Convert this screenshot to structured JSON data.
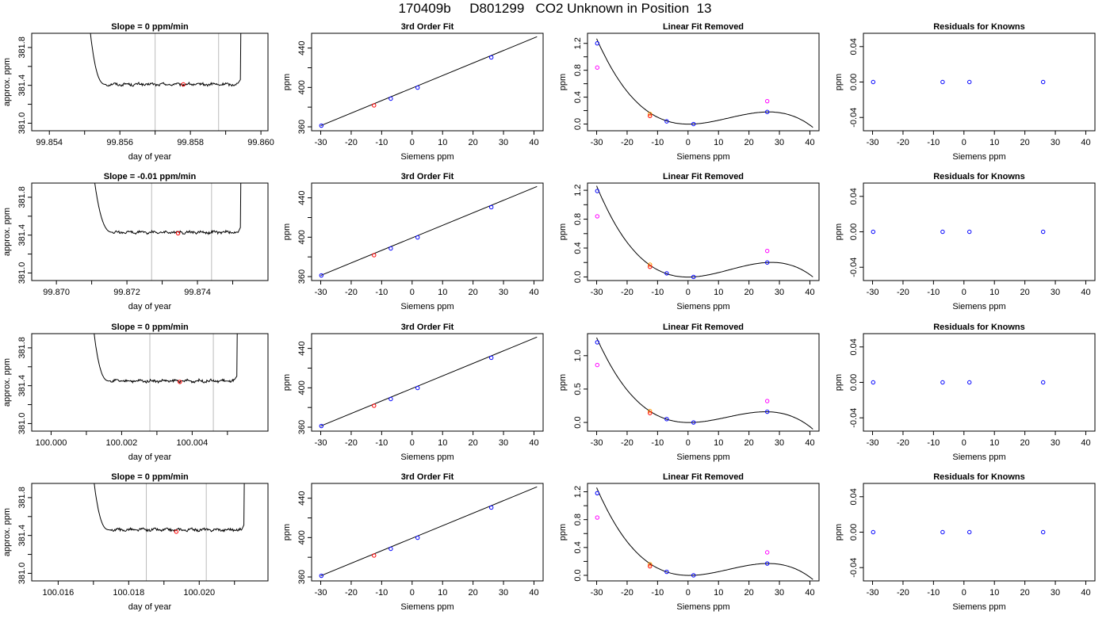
{
  "figure_title": "170409b     D801299   CO2 Unknown in Position  13",
  "colors": {
    "trace": "#000000",
    "marker_point": "#ff0000",
    "known_points": "#0000ff",
    "fit_point_alt": "#ff9900",
    "unknown_point": "#ff00ff",
    "guide_lines": "#bbbbbb"
  },
  "chart_data": [
    {
      "type": "line",
      "row": 0,
      "title": "Slope =  0  ppm/min",
      "xlabel": "day of year",
      "ylabel": "approx. ppm",
      "xlim": [
        99.8535,
        99.8602
      ],
      "ylim": [
        380.92,
        381.95
      ],
      "xticks": [
        99.854,
        99.855,
        99.856,
        99.857,
        99.858,
        99.859,
        99.86
      ],
      "xticklabels": [
        "99.854",
        "",
        "99.856",
        "",
        "99.858",
        "",
        "99.860"
      ],
      "yticks": [
        381.0,
        381.2,
        381.4,
        381.6,
        381.8
      ],
      "yticklabels": [
        "381.0",
        "",
        "381.4",
        "",
        "381.8"
      ],
      "trace": {
        "start": 99.85505,
        "settle": 99.8556,
        "end": 99.85935,
        "level": 381.41,
        "initial": 382.4
      },
      "window": [
        99.857,
        99.8588
      ],
      "marker": {
        "x": 99.8578,
        "y": 381.41
      }
    },
    {
      "type": "scatter",
      "row": 0,
      "title": "3rd Order Fit",
      "xlabel": "Siemens ppm",
      "ylabel": "ppm",
      "xlim": [
        -33,
        43
      ],
      "ylim": [
        356,
        455
      ],
      "xticks": [
        -30,
        -20,
        -10,
        0,
        10,
        20,
        30,
        40
      ],
      "yticks": [
        360,
        380,
        400,
        420,
        440
      ],
      "yticklabels": [
        "360",
        "",
        "400",
        "",
        "440"
      ],
      "fit_line": {
        "x1": -30,
        "y1": 361.2,
        "x2": 41,
        "y2": 451.5
      },
      "points": [
        {
          "x": -29.8,
          "y": 361.2,
          "color": "blue"
        },
        {
          "x": -12.5,
          "y": 381.8,
          "color": "red"
        },
        {
          "x": -7,
          "y": 388.6,
          "color": "blue"
        },
        {
          "x": 1.8,
          "y": 399.8,
          "color": "blue"
        },
        {
          "x": 26,
          "y": 430.5,
          "color": "blue"
        }
      ]
    },
    {
      "type": "scatter",
      "row": 0,
      "title": "Linear Fit Removed",
      "xlabel": "Siemens ppm",
      "ylabel": "ppm",
      "xlim": [
        -33,
        43
      ],
      "ylim": [
        -0.1,
        1.35
      ],
      "xticks": [
        -30,
        -20,
        -10,
        0,
        10,
        20,
        30,
        40
      ],
      "yticks": [
        0.0,
        0.2,
        0.4,
        0.6,
        0.8,
        1.0,
        1.2
      ],
      "yticklabels": [
        "0.0",
        "",
        "0.4",
        "",
        "0.8",
        "",
        "1.2"
      ],
      "curve": {
        "anchors": [
          {
            "x": -30,
            "y": 1.27
          },
          {
            "x": 1.5,
            "y": 0.0
          },
          {
            "x": 26,
            "y": 0.18
          },
          {
            "x": 41,
            "y": -0.05
          }
        ]
      },
      "points": [
        {
          "x": -29.8,
          "y": 1.2,
          "color": "blue"
        },
        {
          "x": -29.8,
          "y": 0.84,
          "color": "magenta"
        },
        {
          "x": -12.5,
          "y": 0.15,
          "color": "orange"
        },
        {
          "x": -12.5,
          "y": 0.12,
          "color": "red"
        },
        {
          "x": -7,
          "y": 0.04,
          "color": "blue"
        },
        {
          "x": 1.8,
          "y": 0.0,
          "color": "blue"
        },
        {
          "x": 26,
          "y": 0.18,
          "color": "blue"
        },
        {
          "x": 26,
          "y": 0.34,
          "color": "magenta"
        }
      ]
    },
    {
      "type": "scatter",
      "row": 0,
      "title": "Residuals for Knowns",
      "xlabel": "Siemens ppm",
      "ylabel": "ppm",
      "xlim": [
        -33,
        43
      ],
      "ylim": [
        -0.055,
        0.055
      ],
      "xticks": [
        -30,
        -20,
        -10,
        0,
        10,
        20,
        30,
        40
      ],
      "yticks": [
        -0.04,
        0.0,
        0.04
      ],
      "yticklabels": [
        "-0.04",
        "0.00",
        "0.04"
      ],
      "points": [
        {
          "x": -29.8,
          "y": 0,
          "color": "blue"
        },
        {
          "x": -7,
          "y": 0,
          "color": "blue"
        },
        {
          "x": 1.8,
          "y": 0,
          "color": "blue"
        },
        {
          "x": 26,
          "y": 0,
          "color": "blue"
        }
      ]
    },
    {
      "type": "line",
      "row": 1,
      "title": "Slope =  -0.01  ppm/min",
      "xlabel": "day of year",
      "ylabel": "approx. ppm",
      "xlim": [
        99.8693,
        99.876
      ],
      "ylim": [
        380.92,
        381.95
      ],
      "xticks": [
        99.87,
        99.871,
        99.872,
        99.873,
        99.874,
        99.875
      ],
      "xticklabels": [
        "99.870",
        "",
        "99.872",
        "",
        "99.874",
        ""
      ],
      "yticks": [
        381.0,
        381.2,
        381.4,
        381.6,
        381.8
      ],
      "yticklabels": [
        "381.0",
        "",
        "381.4",
        "",
        "381.8"
      ],
      "trace": {
        "start": 99.87095,
        "settle": 99.8716,
        "end": 99.87515,
        "level": 381.43,
        "initial": 382.4
      },
      "window": [
        99.8727,
        99.8744
      ],
      "marker": {
        "x": 99.87345,
        "y": 381.42
      }
    },
    {
      "type": "scatter",
      "row": 1,
      "title": "3rd Order Fit",
      "xlabel": "Siemens ppm",
      "ylabel": "ppm",
      "xlim": [
        -33,
        43
      ],
      "ylim": [
        356,
        455
      ],
      "xticks": [
        -30,
        -20,
        -10,
        0,
        10,
        20,
        30,
        40
      ],
      "yticks": [
        360,
        380,
        400,
        420,
        440
      ],
      "yticklabels": [
        "360",
        "",
        "400",
        "",
        "440"
      ],
      "fit_line": {
        "x1": -30,
        "y1": 361.2,
        "x2": 41,
        "y2": 451.5
      },
      "points": [
        {
          "x": -29.8,
          "y": 361.2,
          "color": "blue"
        },
        {
          "x": -12.5,
          "y": 381.8,
          "color": "red"
        },
        {
          "x": -7,
          "y": 388.6,
          "color": "blue"
        },
        {
          "x": 1.8,
          "y": 399.8,
          "color": "blue"
        },
        {
          "x": 26,
          "y": 430.5,
          "color": "blue"
        }
      ]
    },
    {
      "type": "scatter",
      "row": 1,
      "title": "Linear Fit Removed",
      "xlabel": "Siemens ppm",
      "ylabel": "ppm",
      "xlim": [
        -33,
        43
      ],
      "ylim": [
        -0.05,
        1.3
      ],
      "xticks": [
        -30,
        -20,
        -10,
        0,
        10,
        20,
        30,
        40
      ],
      "yticks": [
        0.0,
        0.2,
        0.4,
        0.6,
        0.8,
        1.0,
        1.2
      ],
      "yticklabels": [
        "0.0",
        "",
        "0.4",
        "",
        "0.8",
        "",
        "1.2"
      ],
      "curve": {
        "anchors": [
          {
            "x": -30,
            "y": 1.26
          },
          {
            "x": 1.5,
            "y": 0.0
          },
          {
            "x": 26,
            "y": 0.2
          },
          {
            "x": 41,
            "y": 0.0
          }
        ]
      },
      "points": [
        {
          "x": -29.8,
          "y": 1.19,
          "color": "blue"
        },
        {
          "x": -29.8,
          "y": 0.84,
          "color": "magenta"
        },
        {
          "x": -12.5,
          "y": 0.17,
          "color": "orange"
        },
        {
          "x": -12.5,
          "y": 0.14,
          "color": "red"
        },
        {
          "x": -7,
          "y": 0.05,
          "color": "blue"
        },
        {
          "x": 1.8,
          "y": 0.0,
          "color": "blue"
        },
        {
          "x": 26,
          "y": 0.2,
          "color": "blue"
        },
        {
          "x": 26,
          "y": 0.36,
          "color": "magenta"
        }
      ]
    },
    {
      "type": "scatter",
      "row": 1,
      "title": "Residuals for Knowns",
      "xlabel": "Siemens ppm",
      "ylabel": "ppm",
      "xlim": [
        -33,
        43
      ],
      "ylim": [
        -0.055,
        0.055
      ],
      "xticks": [
        -30,
        -20,
        -10,
        0,
        10,
        20,
        30,
        40
      ],
      "yticks": [
        -0.04,
        0.0,
        0.04
      ],
      "yticklabels": [
        "-0.04",
        "0.00",
        "0.04"
      ],
      "points": [
        {
          "x": -29.8,
          "y": 0,
          "color": "blue"
        },
        {
          "x": -7,
          "y": 0,
          "color": "blue"
        },
        {
          "x": 1.8,
          "y": 0,
          "color": "blue"
        },
        {
          "x": 26,
          "y": 0,
          "color": "blue"
        }
      ]
    },
    {
      "type": "line",
      "row": 2,
      "title": "Slope =  0  ppm/min",
      "xlabel": "day of year",
      "ylabel": "approx. ppm",
      "xlim": [
        99.99945,
        100.00615
      ],
      "ylim": [
        380.92,
        381.95
      ],
      "xticks": [
        100.0,
        100.001,
        100.002,
        100.003,
        100.004,
        100.005
      ],
      "xticklabels": [
        "100.000",
        "",
        "100.002",
        "",
        "100.004",
        ""
      ],
      "yticks": [
        381.0,
        381.2,
        381.4,
        381.6,
        381.8
      ],
      "yticklabels": [
        "381.0",
        "",
        "381.4",
        "",
        "381.8"
      ],
      "trace": {
        "start": 100.0011,
        "settle": 100.00165,
        "end": 100.0052,
        "level": 381.45,
        "initial": 382.4
      },
      "window": [
        100.0028,
        100.0046
      ],
      "marker": {
        "x": 100.00365,
        "y": 381.44
      }
    },
    {
      "type": "scatter",
      "row": 2,
      "title": "3rd Order Fit",
      "xlabel": "Siemens ppm",
      "ylabel": "ppm",
      "xlim": [
        -33,
        43
      ],
      "ylim": [
        356,
        455
      ],
      "xticks": [
        -30,
        -20,
        -10,
        0,
        10,
        20,
        30,
        40
      ],
      "yticks": [
        360,
        380,
        400,
        420,
        440
      ],
      "yticklabels": [
        "360",
        "",
        "400",
        "",
        "440"
      ],
      "fit_line": {
        "x1": -30,
        "y1": 361.2,
        "x2": 41,
        "y2": 451.5
      },
      "points": [
        {
          "x": -29.8,
          "y": 361.2,
          "color": "blue"
        },
        {
          "x": -12.5,
          "y": 381.8,
          "color": "red"
        },
        {
          "x": -7,
          "y": 388.6,
          "color": "blue"
        },
        {
          "x": 1.8,
          "y": 399.8,
          "color": "blue"
        },
        {
          "x": 26,
          "y": 430.5,
          "color": "blue"
        }
      ]
    },
    {
      "type": "scatter",
      "row": 2,
      "title": "Linear Fit Removed",
      "xlabel": "Siemens ppm",
      "ylabel": "ppm",
      "xlim": [
        -33,
        43
      ],
      "ylim": [
        -0.13,
        1.33
      ],
      "xticks": [
        -30,
        -20,
        -10,
        0,
        10,
        20,
        30,
        40
      ],
      "yticks": [
        0.0,
        0.5,
        1.0
      ],
      "yticklabels": [
        "0.0",
        "0.5",
        "1.0"
      ],
      "curve": {
        "anchors": [
          {
            "x": -30,
            "y": 1.27
          },
          {
            "x": 1.5,
            "y": 0.0
          },
          {
            "x": 26,
            "y": 0.16
          },
          {
            "x": 41,
            "y": -0.1
          }
        ]
      },
      "points": [
        {
          "x": -29.8,
          "y": 1.2,
          "color": "blue"
        },
        {
          "x": -29.8,
          "y": 0.86,
          "color": "magenta"
        },
        {
          "x": -12.5,
          "y": 0.17,
          "color": "orange"
        },
        {
          "x": -12.5,
          "y": 0.14,
          "color": "red"
        },
        {
          "x": -7,
          "y": 0.05,
          "color": "blue"
        },
        {
          "x": 1.8,
          "y": 0.0,
          "color": "blue"
        },
        {
          "x": 26,
          "y": 0.16,
          "color": "blue"
        },
        {
          "x": 26,
          "y": 0.32,
          "color": "magenta"
        }
      ]
    },
    {
      "type": "scatter",
      "row": 2,
      "title": "Residuals for Knowns",
      "xlabel": "Siemens ppm",
      "ylabel": "ppm",
      "xlim": [
        -33,
        43
      ],
      "ylim": [
        -0.055,
        0.055
      ],
      "xticks": [
        -30,
        -20,
        -10,
        0,
        10,
        20,
        30,
        40
      ],
      "yticks": [
        -0.04,
        0.0,
        0.04
      ],
      "yticklabels": [
        "-0.04",
        "0.00",
        "0.04"
      ],
      "points": [
        {
          "x": -29.8,
          "y": 0,
          "color": "blue"
        },
        {
          "x": -7,
          "y": 0,
          "color": "blue"
        },
        {
          "x": 1.8,
          "y": 0,
          "color": "blue"
        },
        {
          "x": 26,
          "y": 0,
          "color": "blue"
        }
      ]
    },
    {
      "type": "line",
      "row": 3,
      "title": "Slope =  0  ppm/min",
      "xlabel": "day of year",
      "ylabel": "approx. ppm",
      "xlim": [
        100.01525,
        100.02195
      ],
      "ylim": [
        380.92,
        381.95
      ],
      "xticks": [
        100.016,
        100.017,
        100.018,
        100.019,
        100.02,
        100.021
      ],
      "xticklabels": [
        "100.016",
        "",
        "100.018",
        "",
        "100.020",
        ""
      ],
      "yticks": [
        381.0,
        381.2,
        381.4,
        381.6,
        381.8
      ],
      "yticklabels": [
        "381.0",
        "",
        "381.4",
        "",
        "381.8"
      ],
      "trace": {
        "start": 100.0169,
        "settle": 100.01745,
        "end": 100.0212,
        "level": 381.46,
        "initial": 382.4
      },
      "window": [
        100.0185,
        100.0202
      ],
      "marker": {
        "x": 100.01935,
        "y": 381.44
      }
    },
    {
      "type": "scatter",
      "row": 3,
      "title": "3rd Order Fit",
      "xlabel": "Siemens ppm",
      "ylabel": "ppm",
      "xlim": [
        -33,
        43
      ],
      "ylim": [
        356,
        455
      ],
      "xticks": [
        -30,
        -20,
        -10,
        0,
        10,
        20,
        30,
        40
      ],
      "yticks": [
        360,
        380,
        400,
        420,
        440
      ],
      "yticklabels": [
        "360",
        "",
        "400",
        "",
        "440"
      ],
      "fit_line": {
        "x1": -30,
        "y1": 361.2,
        "x2": 41,
        "y2": 451.5
      },
      "points": [
        {
          "x": -29.8,
          "y": 361.2,
          "color": "blue"
        },
        {
          "x": -12.5,
          "y": 381.8,
          "color": "red"
        },
        {
          "x": -7,
          "y": 388.6,
          "color": "blue"
        },
        {
          "x": 1.8,
          "y": 399.8,
          "color": "blue"
        },
        {
          "x": 26,
          "y": 430.5,
          "color": "blue"
        }
      ]
    },
    {
      "type": "scatter",
      "row": 3,
      "title": "Linear Fit Removed",
      "xlabel": "Siemens ppm",
      "ylabel": "ppm",
      "xlim": [
        -33,
        43
      ],
      "ylim": [
        -0.08,
        1.32
      ],
      "xticks": [
        -30,
        -20,
        -10,
        0,
        10,
        20,
        30,
        40
      ],
      "yticks": [
        0.0,
        0.2,
        0.4,
        0.6,
        0.8,
        1.0,
        1.2
      ],
      "yticklabels": [
        "0.0",
        "",
        "0.4",
        "",
        "0.8",
        "",
        "1.2"
      ],
      "curve": {
        "anchors": [
          {
            "x": -30,
            "y": 1.26
          },
          {
            "x": 1.5,
            "y": 0.0
          },
          {
            "x": 26,
            "y": 0.17
          },
          {
            "x": 41,
            "y": -0.06
          }
        ]
      },
      "points": [
        {
          "x": -29.8,
          "y": 1.18,
          "color": "blue"
        },
        {
          "x": -29.8,
          "y": 0.83,
          "color": "magenta"
        },
        {
          "x": -12.5,
          "y": 0.16,
          "color": "orange"
        },
        {
          "x": -12.5,
          "y": 0.13,
          "color": "red"
        },
        {
          "x": -7,
          "y": 0.05,
          "color": "blue"
        },
        {
          "x": 1.8,
          "y": 0.0,
          "color": "blue"
        },
        {
          "x": 26,
          "y": 0.17,
          "color": "blue"
        },
        {
          "x": 26,
          "y": 0.33,
          "color": "magenta"
        }
      ]
    },
    {
      "type": "scatter",
      "row": 3,
      "title": "Residuals for Knowns",
      "xlabel": "Siemens ppm",
      "ylabel": "ppm",
      "xlim": [
        -33,
        43
      ],
      "ylim": [
        -0.055,
        0.055
      ],
      "xticks": [
        -30,
        -20,
        -10,
        0,
        10,
        20,
        30,
        40
      ],
      "yticks": [
        -0.04,
        0.0,
        0.04
      ],
      "yticklabels": [
        "-0.04",
        "0.00",
        "0.04"
      ],
      "points": [
        {
          "x": -29.8,
          "y": 0,
          "color": "blue"
        },
        {
          "x": -7,
          "y": 0,
          "color": "blue"
        },
        {
          "x": 1.8,
          "y": 0,
          "color": "blue"
        },
        {
          "x": 26,
          "y": 0,
          "color": "blue"
        }
      ]
    }
  ]
}
